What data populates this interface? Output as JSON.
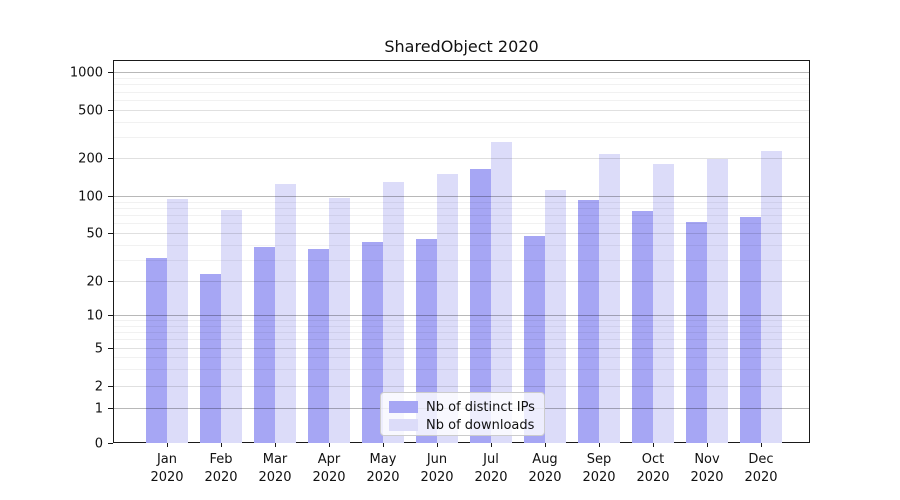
{
  "chart_data": {
    "type": "bar",
    "title": "SharedObject 2020",
    "categories": [
      "Jan 2020",
      "Feb 2020",
      "Mar 2020",
      "Apr 2020",
      "May 2020",
      "Jun 2020",
      "Jul 2020",
      "Aug 2020",
      "Sep 2020",
      "Oct 2020",
      "Nov 2020",
      "Dec 2020"
    ],
    "series": [
      {
        "name": "Nb of distinct IPs",
        "color": "#a6a6f4",
        "values": [
          31,
          23,
          38,
          37,
          42,
          45,
          164,
          47,
          93,
          75,
          62,
          68
        ]
      },
      {
        "name": "Nb of downloads",
        "color": "#dcdcf9",
        "values": [
          95,
          77,
          124,
          97,
          129,
          150,
          270,
          112,
          216,
          180,
          198,
          229
        ]
      }
    ],
    "y_ticks": [
      0,
      1,
      2,
      5,
      10,
      20,
      50,
      100,
      200,
      500,
      1000
    ],
    "xlabel": "",
    "ylabel": "",
    "y_scale": "symlog",
    "ylim": [
      0,
      1250
    ],
    "grid": true,
    "legend_position": "lower center"
  }
}
